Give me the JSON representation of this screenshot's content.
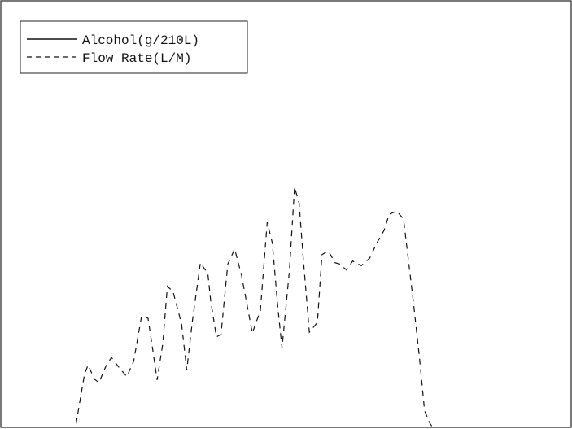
{
  "chart_data": {
    "type": "line",
    "title": "",
    "xlabel": "",
    "ylabel": "",
    "legend_position": "top-left",
    "grid": false,
    "xlim": [
      0,
      100
    ],
    "ylim": [
      0,
      100
    ],
    "series": [
      {
        "name": "Alcohol(g/210L)",
        "style": "solid",
        "color": "#111111",
        "x": [],
        "y": []
      },
      {
        "name": "Flow Rate(L/M)",
        "style": "dashed",
        "color": "#111111",
        "x": [
          13.2,
          13.8,
          14.7,
          15.3,
          16.4,
          17.2,
          18.4,
          19.4,
          20.5,
          22.1,
          23.3,
          24.7,
          25.8,
          26.6,
          27.4,
          28.4,
          29.2,
          30.2,
          31.7,
          32.6,
          33.6,
          35.0,
          36.3,
          36.8,
          37.8,
          38.6,
          39.8,
          41.0,
          42.2,
          44.1,
          45.5,
          46.7,
          47.6,
          48.5,
          49.3,
          50.6,
          51.5,
          52.3,
          53.0,
          54.1,
          55.5,
          56.3,
          57.4,
          58.6,
          59.4,
          60.6,
          61.7,
          63.2,
          64.7,
          65.9,
          67.2,
          68.1,
          69.4,
          70.6,
          72.3,
          73.4,
          74.3,
          75.2,
          75.6,
          76.2,
          76.9
        ],
        "y": [
          0.8,
          5.6,
          12.6,
          14.6,
          11.3,
          10.5,
          14.3,
          16.4,
          14.4,
          11.9,
          15.5,
          26.2,
          25.6,
          18.5,
          11.1,
          19.7,
          33.1,
          31.8,
          24.2,
          13.4,
          25.0,
          38.6,
          36.0,
          29.6,
          21.2,
          21.8,
          38.3,
          41.8,
          35.7,
          22.1,
          27.4,
          48.1,
          43.2,
          29.0,
          18.6,
          36.8,
          56.3,
          52.6,
          40.1,
          22.3,
          24.6,
          40.5,
          41.4,
          38.6,
          38.3,
          36.9,
          39.0,
          37.9,
          39.7,
          43.2,
          46.2,
          50.0,
          50.7,
          48.9,
          29.8,
          16.4,
          3.9,
          1.0,
          0.2,
          0.1,
          0.0
        ]
      }
    ]
  }
}
